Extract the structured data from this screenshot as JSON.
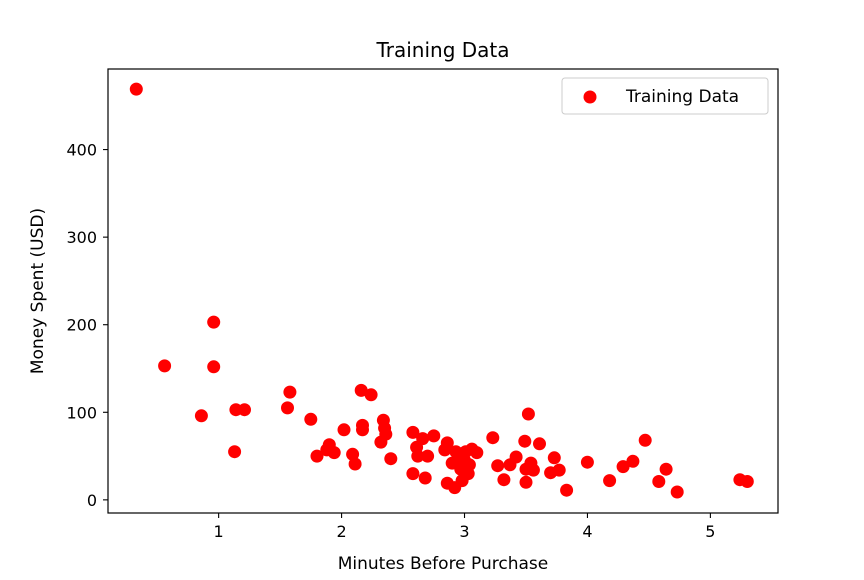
{
  "chart_data": {
    "type": "scatter",
    "title": "Training Data",
    "xlabel": "Minutes Before Purchase",
    "ylabel": "Money Spent (USD)",
    "xlim": [
      0.1,
      5.55
    ],
    "ylim": [
      -15,
      492
    ],
    "xticks": [
      1,
      2,
      3,
      4,
      5
    ],
    "xtick_labels": [
      "1",
      "2",
      "3",
      "4",
      "5"
    ],
    "yticks": [
      0,
      100,
      200,
      300,
      400
    ],
    "ytick_labels": [
      "0",
      "100",
      "200",
      "300",
      "400"
    ],
    "grid": false,
    "legend": {
      "position": "top-right",
      "entries": [
        "Training Data"
      ]
    },
    "series": [
      {
        "name": "Training Data",
        "color": "#ff0000",
        "marker": "circle",
        "points": [
          [
            0.33,
            469
          ],
          [
            0.56,
            153
          ],
          [
            0.86,
            96
          ],
          [
            0.96,
            203
          ],
          [
            0.96,
            152
          ],
          [
            1.14,
            103
          ],
          [
            1.13,
            55
          ],
          [
            1.21,
            103
          ],
          [
            1.56,
            105
          ],
          [
            1.58,
            123
          ],
          [
            1.75,
            92
          ],
          [
            1.8,
            50
          ],
          [
            1.88,
            57
          ],
          [
            1.9,
            63
          ],
          [
            1.94,
            54
          ],
          [
            2.02,
            80
          ],
          [
            2.09,
            52
          ],
          [
            2.11,
            41
          ],
          [
            2.16,
            125
          ],
          [
            2.17,
            85
          ],
          [
            2.17,
            80
          ],
          [
            2.24,
            120
          ],
          [
            2.32,
            66
          ],
          [
            2.34,
            91
          ],
          [
            2.35,
            82
          ],
          [
            2.36,
            75
          ],
          [
            2.4,
            47
          ],
          [
            2.58,
            77
          ],
          [
            2.58,
            30
          ],
          [
            2.61,
            60
          ],
          [
            2.62,
            50
          ],
          [
            2.66,
            70
          ],
          [
            2.68,
            25
          ],
          [
            2.7,
            50
          ],
          [
            2.75,
            73
          ],
          [
            2.84,
            57
          ],
          [
            2.86,
            65
          ],
          [
            2.86,
            19
          ],
          [
            2.9,
            42
          ],
          [
            2.92,
            14
          ],
          [
            2.93,
            55
          ],
          [
            2.95,
            48
          ],
          [
            2.97,
            35
          ],
          [
            2.98,
            22
          ],
          [
            3.0,
            45
          ],
          [
            3.01,
            55
          ],
          [
            3.03,
            30
          ],
          [
            3.04,
            40
          ],
          [
            3.06,
            58
          ],
          [
            3.1,
            54
          ],
          [
            3.23,
            71
          ],
          [
            3.27,
            39
          ],
          [
            3.32,
            23
          ],
          [
            3.37,
            40
          ],
          [
            3.42,
            49
          ],
          [
            3.49,
            67
          ],
          [
            3.5,
            20
          ],
          [
            3.5,
            35
          ],
          [
            3.52,
            98
          ],
          [
            3.54,
            42
          ],
          [
            3.56,
            34
          ],
          [
            3.61,
            64
          ],
          [
            3.7,
            31
          ],
          [
            3.73,
            48
          ],
          [
            3.77,
            34
          ],
          [
            3.83,
            11
          ],
          [
            4.0,
            43
          ],
          [
            4.18,
            22
          ],
          [
            4.29,
            38
          ],
          [
            4.37,
            44
          ],
          [
            4.47,
            68
          ],
          [
            4.58,
            21
          ],
          [
            4.64,
            35
          ],
          [
            4.73,
            9
          ],
          [
            5.24,
            23
          ],
          [
            5.3,
            21
          ]
        ]
      }
    ]
  }
}
